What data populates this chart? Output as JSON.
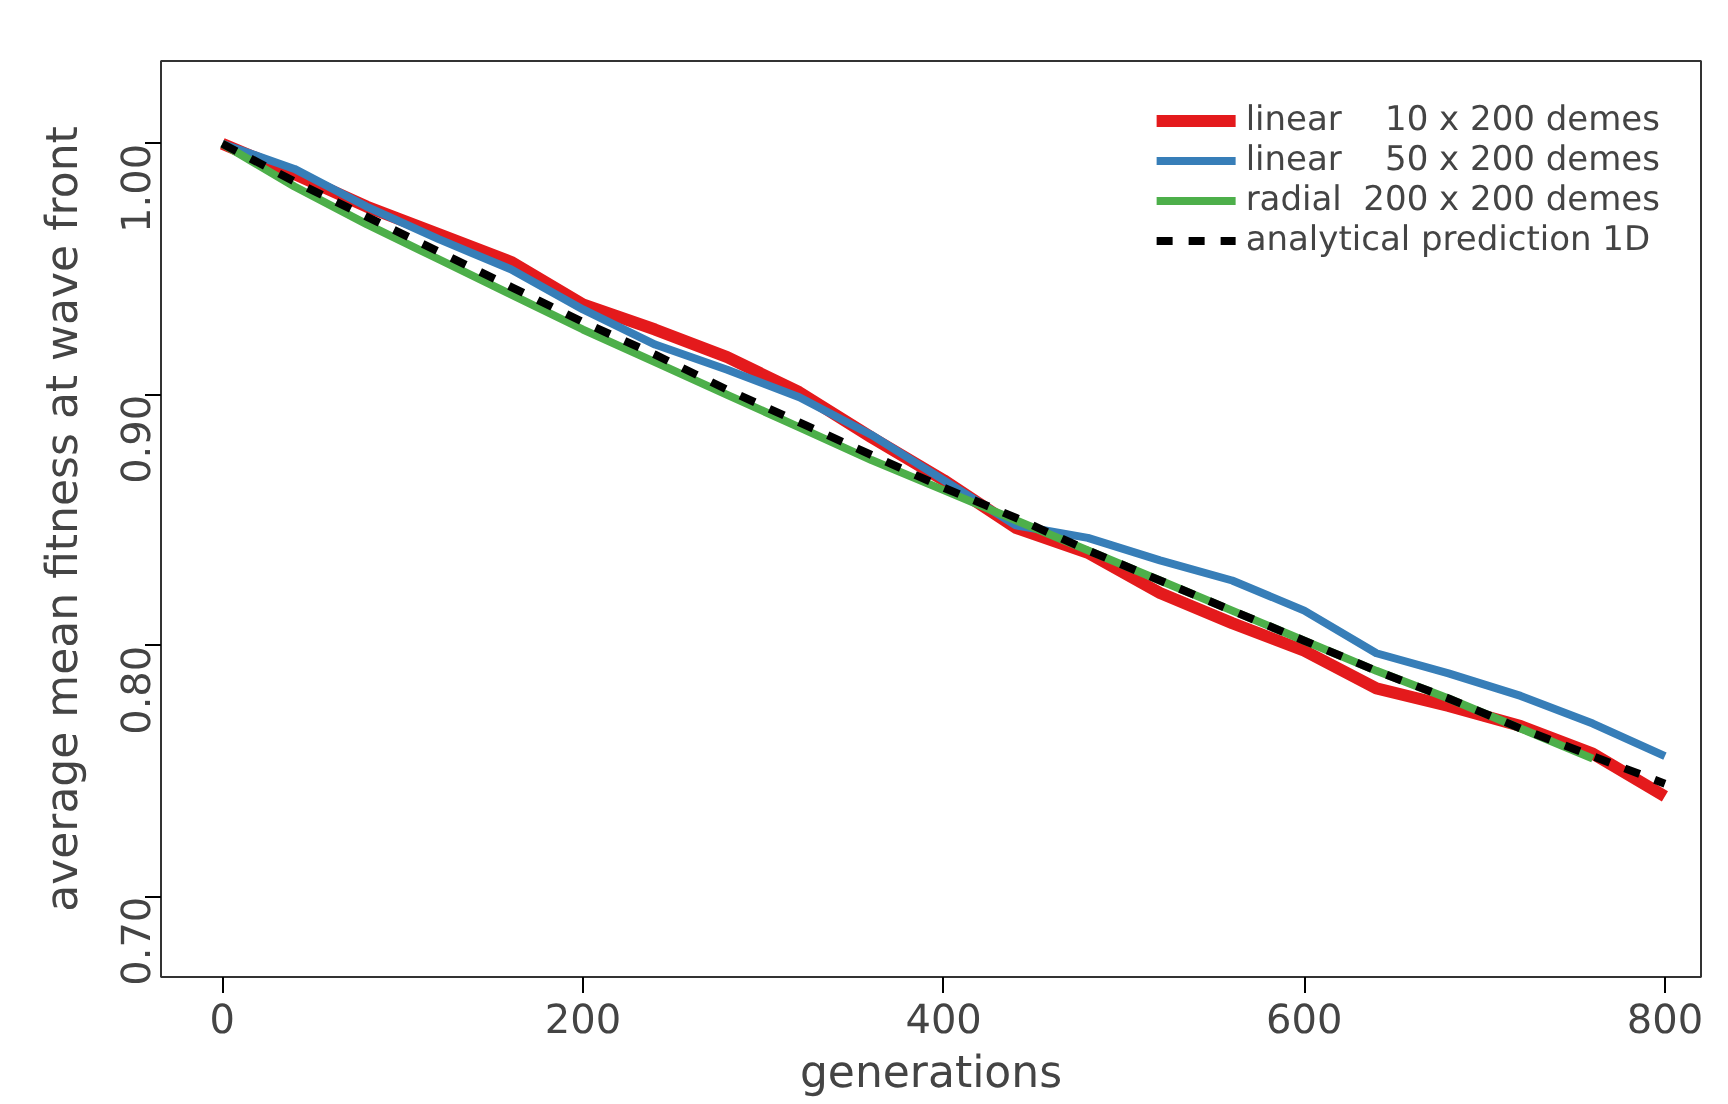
{
  "chart_data": {
    "type": "line",
    "xlabel": "generations",
    "ylabel": "average mean fitness at wave front",
    "x": [
      0,
      40,
      80,
      120,
      160,
      200,
      240,
      280,
      320,
      360,
      400,
      440,
      480,
      520,
      560,
      600,
      640,
      680,
      720,
      760,
      800
    ],
    "series": [
      {
        "name": "linear    10 x 200 demes",
        "color": "#e41a1c",
        "values": [
          1.0,
          0.988,
          0.975,
          0.964,
          0.953,
          0.936,
          0.926,
          0.915,
          0.901,
          0.883,
          0.866,
          0.847,
          0.837,
          0.821,
          0.809,
          0.798,
          0.783,
          0.776,
          0.768,
          0.757,
          0.74
        ]
      },
      {
        "name": "linear    50 x 200 demes",
        "color": "#377eb8",
        "values": [
          1.0,
          0.99,
          0.975,
          0.962,
          0.95,
          0.934,
          0.92,
          0.91,
          0.899,
          0.884,
          0.866,
          0.848,
          0.843,
          0.834,
          0.826,
          0.814,
          0.797,
          0.789,
          0.78,
          0.769,
          0.756
        ]
      },
      {
        "name": "radial  200 x 200 demes",
        "color": "#4daf4a",
        "values": [
          1.0,
          0.983,
          0.968,
          0.954,
          0.94,
          0.926,
          0.913,
          0.9,
          0.887,
          0.874,
          0.862,
          0.85,
          0.838,
          0.826,
          0.814,
          0.802,
          0.79,
          0.779,
          0.767,
          0.755,
          null
        ]
      },
      {
        "name": "analytical prediction 1D",
        "color": "#000000",
        "line_style": "dashed",
        "values": [
          1.0,
          0.985,
          0.971,
          0.957,
          0.943,
          0.929,
          0.916,
          0.902,
          0.889,
          0.876,
          0.863,
          0.851,
          0.838,
          0.826,
          0.814,
          0.802,
          0.79,
          0.779,
          0.767,
          0.756,
          0.745
        ]
      }
    ],
    "xlim": [
      -34,
      820
    ],
    "ylim": [
      0.668,
      1.033
    ],
    "xticks": [
      0,
      200,
      400,
      600,
      800
    ],
    "yticks": [
      {
        "value": 0.7,
        "label": "0.70"
      },
      {
        "value": 0.8,
        "label": "0.80"
      },
      {
        "value": 0.9,
        "label": "0.90"
      },
      {
        "value": 1.0,
        "label": "1.00"
      }
    ],
    "grid": false,
    "legend": "top right"
  }
}
